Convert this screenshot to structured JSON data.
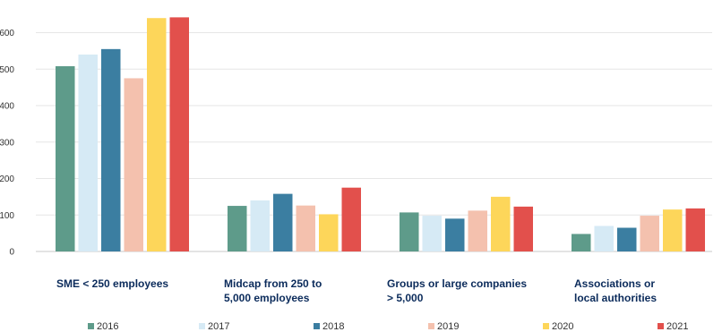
{
  "chart_data": {
    "type": "bar",
    "categories": [
      [
        "SME < 250 employees"
      ],
      [
        "Midcap from 250 to",
        "5,000 employees"
      ],
      [
        "Groups or large companies",
        "> 5,000"
      ],
      [
        "Associations or",
        "local authorities"
      ]
    ],
    "series": [
      {
        "name": "2016",
        "color": "#5e9b8a",
        "values": [
          508,
          125,
          107,
          48
        ]
      },
      {
        "name": "2017",
        "color": "#d6eaf5",
        "values": [
          540,
          140,
          98,
          70
        ]
      },
      {
        "name": "2018",
        "color": "#3b7ea1",
        "values": [
          555,
          158,
          90,
          65
        ]
      },
      {
        "name": "2019",
        "color": "#f4c1ae",
        "values": [
          475,
          126,
          112,
          98
        ]
      },
      {
        "name": "2020",
        "color": "#fdd65a",
        "values": [
          640,
          102,
          150,
          115
        ]
      },
      {
        "name": "2021",
        "color": "#e2504c",
        "values": [
          642,
          175,
          123,
          118
        ]
      }
    ],
    "ylim": [
      0,
      700
    ],
    "yticks": [
      0,
      100,
      200,
      300,
      400,
      500,
      600
    ],
    "grid": true,
    "legend_position": "bottom"
  }
}
